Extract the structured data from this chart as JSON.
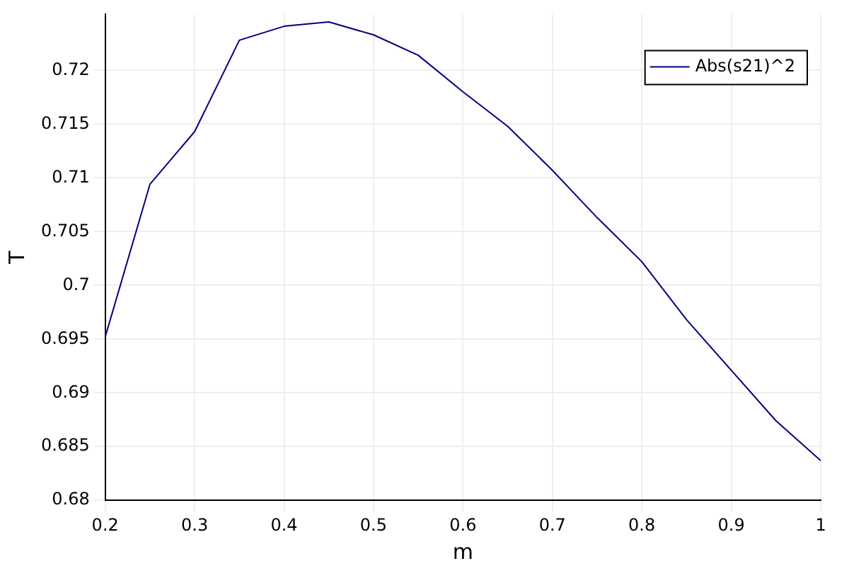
{
  "chart_data": {
    "type": "line",
    "xlabel": "m",
    "ylabel": "T",
    "x": [
      0.2,
      0.25,
      0.3,
      0.35,
      0.4,
      0.45,
      0.5,
      0.55,
      0.6,
      0.65,
      0.7,
      0.75,
      0.8,
      0.85,
      0.9,
      0.95,
      1.0
    ],
    "series": [
      {
        "name": "Abs(s21)^2",
        "color": "#000080",
        "values": [
          0.6952,
          0.7094,
          0.7143,
          0.7228,
          0.7241,
          0.7245,
          0.7233,
          0.7214,
          0.718,
          0.7148,
          0.7107,
          0.7063,
          0.7022,
          0.6968,
          0.6921,
          0.6874,
          0.6837
        ]
      }
    ],
    "xlim": [
      0.2,
      1
    ],
    "xticks": [
      0.2,
      0.3,
      0.4,
      0.5,
      0.6,
      0.7,
      0.8,
      0.9,
      1
    ],
    "ylim": [
      0.68,
      0.7252
    ],
    "yticks": [
      0.68,
      0.685,
      0.69,
      0.695,
      0.7,
      0.705,
      0.71,
      0.715,
      0.72
    ],
    "grid": true,
    "legend": "top right",
    "marker": "none",
    "line_style": "solid"
  }
}
